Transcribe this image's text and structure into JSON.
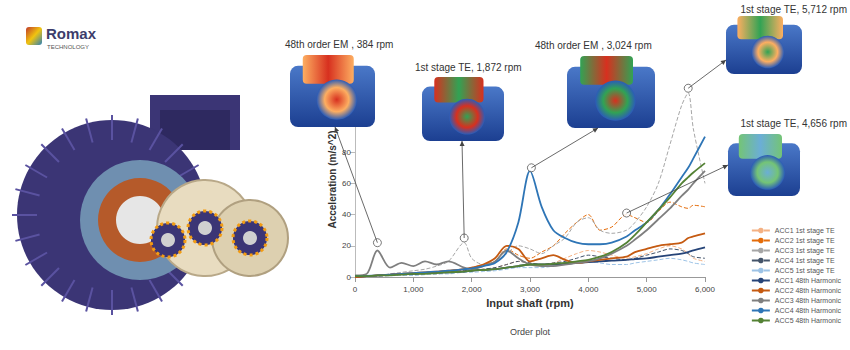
{
  "chart_data": {
    "type": "line",
    "logo": "Romax",
    "logo_subtitle": "TECHNOLOGY",
    "subtitle": "Order plot",
    "x_label": "Input shaft (rpm)",
    "y_label": "Acceleration (m/s^2)",
    "xlim": [
      0,
      6000
    ],
    "xticks": [
      0,
      {
        "value": 1000,
        "label": "1,000"
      },
      {
        "value": 2000,
        "label": "2,000"
      },
      {
        "value": 3000,
        "label": "3,000"
      },
      {
        "value": 4000,
        "label": "4,000"
      },
      {
        "value": 5000,
        "label": "5,000"
      },
      {
        "value": 6000,
        "label": "6,000"
      }
    ],
    "ylim": [
      0,
      125
    ],
    "yticks": [
      0,
      20,
      40,
      60,
      80
    ],
    "grid": false,
    "legend": "right",
    "marker": "none",
    "x": [
      0,
      200,
      384,
      600,
      800,
      1000,
      1200,
      1400,
      1600,
      1872,
      2000,
      2200,
      2400,
      2600,
      2800,
      3000,
      3200,
      3400,
      3600,
      3800,
      4000,
      4200,
      4400,
      4656,
      4800,
      5000,
      5200,
      5400,
      5600,
      5712,
      5800,
      6000
    ],
    "series": [
      {
        "name": "ACC1 1st stage TE",
        "color": "#f4b183",
        "line_style": "dashed",
        "values": [
          0,
          0.3,
          0.5,
          1,
          1.5,
          2,
          2.5,
          3,
          3.5,
          4,
          4.5,
          5,
          6,
          8,
          10,
          9,
          8,
          9,
          12,
          15,
          17,
          16,
          14,
          12,
          13,
          15,
          18,
          20,
          18,
          15,
          12,
          10
        ]
      },
      {
        "name": "ACC2 1st stage TE",
        "color": "#e46c0a",
        "line_style": "dashed",
        "values": [
          0,
          0.5,
          1,
          1.5,
          2,
          2.5,
          3,
          3.5,
          4,
          5,
          6,
          8,
          10,
          18,
          14,
          12,
          16,
          20,
          28,
          35,
          40,
          30,
          32,
          40,
          38,
          35,
          42,
          48,
          45,
          44,
          46,
          45
        ]
      },
      {
        "name": "ACC3 1st stage TE",
        "color": "#a6a6a6",
        "line_style": "dashed",
        "values": [
          0,
          0.5,
          1,
          2,
          3,
          4,
          5,
          7,
          10,
          22,
          12,
          8,
          10,
          15,
          20,
          18,
          15,
          20,
          25,
          35,
          38,
          30,
          28,
          30,
          35,
          45,
          60,
          85,
          110,
          118,
          95,
          60
        ]
      },
      {
        "name": "ACC4 1st stage TE",
        "color": "#44546a",
        "line_style": "dashed",
        "values": [
          0,
          0.3,
          0.5,
          1,
          1,
          1.5,
          2,
          2,
          3,
          4,
          4,
          5,
          6,
          8,
          10,
          9,
          8,
          9,
          10,
          12,
          14,
          13,
          12,
          11,
          12,
          14,
          16,
          18,
          17,
          15,
          13,
          12
        ]
      },
      {
        "name": "ACC5 1st stage TE",
        "color": "#9dc3e6",
        "line_style": "dashed",
        "values": [
          0,
          0.3,
          0.5,
          0.8,
          1,
          1,
          1.5,
          2,
          2,
          3,
          3,
          3.5,
          4,
          5,
          6,
          6,
          6,
          7,
          8,
          9,
          10,
          9,
          8,
          8,
          9,
          10,
          11,
          12,
          11,
          10,
          9,
          8
        ]
      },
      {
        "name": "ACC1 48th Harmonic",
        "color": "#264478",
        "line_style": "solid",
        "values": [
          0,
          0.5,
          1,
          1.5,
          2,
          2,
          2.5,
          3,
          3,
          3.5,
          4,
          4.5,
          5,
          6,
          7,
          8,
          8,
          8,
          8.5,
          9,
          9.5,
          10,
          10.5,
          11,
          11.5,
          12,
          13,
          14,
          15,
          16,
          17,
          19
        ]
      },
      {
        "name": "ACC2 48th Harmonic",
        "color": "#c55a11",
        "line_style": "solid",
        "values": [
          0,
          0.5,
          1,
          1.5,
          2,
          2.5,
          3,
          3.5,
          4,
          5,
          6,
          8,
          12,
          20,
          18,
          10,
          12,
          14,
          11,
          9,
          10,
          11,
          12,
          13,
          16,
          18,
          20,
          21,
          22,
          25,
          26,
          28
        ]
      },
      {
        "name": "ACC3 48th Harmonic",
        "color": "#7f7f7f",
        "line_style": "solid",
        "values": [
          1,
          2,
          17,
          6,
          9,
          7,
          10,
          8,
          10,
          6,
          5,
          7,
          10,
          17,
          12,
          8,
          7,
          7,
          8,
          9,
          10,
          12,
          15,
          20,
          24,
          30,
          37,
          44,
          52,
          56,
          60,
          68
        ]
      },
      {
        "name": "ACC4 48th Harmonic",
        "color": "#2e75b6",
        "line_style": "solid",
        "values": [
          0.5,
          0.7,
          1,
          1.5,
          2,
          2.5,
          3,
          3.5,
          4,
          5,
          5.5,
          7,
          9,
          16,
          35,
          68,
          45,
          30,
          25,
          22,
          21,
          21,
          22,
          26,
          30,
          35,
          43,
          53,
          64,
          70,
          76,
          90
        ]
      },
      {
        "name": "ACC5 48th Harmonic",
        "color": "#548235",
        "line_style": "solid",
        "values": [
          0.5,
          0.5,
          1,
          1,
          1.5,
          2,
          2,
          2.5,
          3,
          3.5,
          4,
          4.5,
          5,
          6,
          7,
          8,
          8,
          8.5,
          9,
          10,
          11,
          13,
          16,
          22,
          27,
          35,
          43,
          51,
          60,
          64,
          67,
          73
        ]
      }
    ],
    "annotations": [
      {
        "text": "48th order EM , 384 rpm",
        "x": 384,
        "y": 22
      },
      {
        "text": "1st stage TE, 1,872 rpm",
        "x": 1872,
        "y": 25
      },
      {
        "text": "48th order EM , 3,024 rpm",
        "x": 3024,
        "y": 70
      },
      {
        "text": "1st stage TE, 5,712 rpm",
        "x": 5712,
        "y": 121
      },
      {
        "text": "1st stage TE, 4,656 rpm",
        "x": 4656,
        "y": 41
      }
    ]
  }
}
